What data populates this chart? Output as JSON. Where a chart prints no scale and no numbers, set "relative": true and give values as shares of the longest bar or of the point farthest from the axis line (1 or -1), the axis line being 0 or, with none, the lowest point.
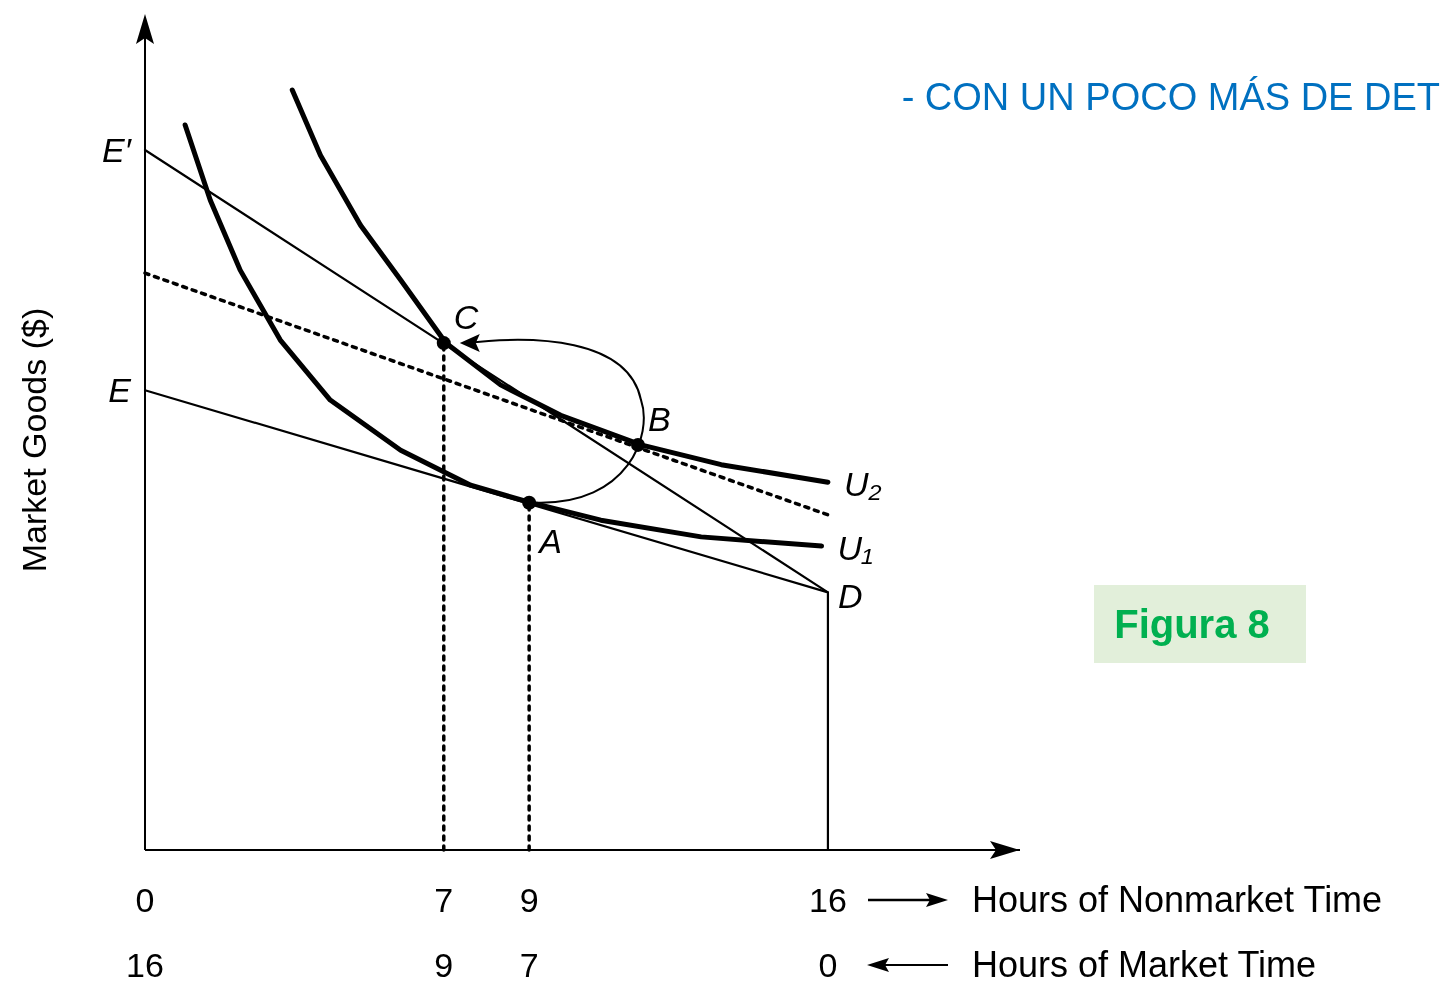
{
  "chart_data": {
    "type": "line",
    "relative": true,
    "title": "- CON UN POCO MÁS DE DET",
    "xlabel": "Hours of Nonmarket Time",
    "x2label": "Hours of Market Time",
    "ylabel": "Market Goods ($)",
    "xlim": [
      0,
      20.5
    ],
    "xticks": [
      0,
      7,
      9,
      16
    ],
    "x2lim": [
      16,
      -4.5
    ],
    "x2ticks": [
      16,
      9,
      7,
      0
    ],
    "series": [
      {
        "color": "#000000",
        "line_style": "solid",
        "x": [
          0,
          16,
          16
        ],
        "values": [
          0.605,
          0.339,
          0
        ]
      },
      {
        "color": "#000000",
        "line_style": "solid",
        "x": [
          0,
          16
        ],
        "values": [
          0.921,
          0.339
        ]
      },
      {
        "color": "#000000",
        "line_style": "dotted",
        "x": [
          0,
          16
        ],
        "values": [
          0.759,
          0.441
        ]
      },
      {
        "color": "#000000",
        "line_style": "dotted",
        "x": [
          7,
          7
        ],
        "values": [
          0,
          0.667
        ]
      },
      {
        "color": "#000000",
        "line_style": "dotted",
        "x": [
          9,
          9
        ],
        "values": [
          0,
          0.457
        ]
      },
      {
        "name": "U₁",
        "color": "#000000",
        "line_style": "solid",
        "x": [
          0.94,
          1.53,
          2.23,
          3.17,
          4.34,
          5.99,
          7.63,
          9.04,
          10.68,
          13.03,
          15.85
        ],
        "values": [
          0.954,
          0.855,
          0.763,
          0.671,
          0.592,
          0.526,
          0.48,
          0.457,
          0.434,
          0.412,
          0.4
        ]
      },
      {
        "name": "U₂",
        "color": "#000000",
        "line_style": "solid",
        "x": [
          3.45,
          4.11,
          5.05,
          5.99,
          7.05,
          8.33,
          9.74,
          11.62,
          13.5,
          16.0
        ],
        "values": [
          1.0,
          0.914,
          0.822,
          0.75,
          0.667,
          0.612,
          0.572,
          0.533,
          0.507,
          0.484
        ]
      },
      {
        "type": "scatter",
        "color": "#000000",
        "marker": "circle",
        "x": [
          9,
          11.55,
          7
        ],
        "values": [
          0.457,
          0.533,
          0.667
        ]
      }
    ],
    "annotations": [
      {
        "text": "E′",
        "x": 0,
        "y": 0.921
      },
      {
        "text": "E",
        "x": 0,
        "y": 0.605
      },
      {
        "text": "D",
        "x": 16,
        "y": 0.339
      },
      {
        "text": "A",
        "x": 9,
        "y": 0.457
      },
      {
        "text": "B",
        "x": 11.55,
        "y": 0.533
      },
      {
        "text": "C",
        "x": 7,
        "y": 0.667
      },
      "Figura 8"
    ]
  }
}
